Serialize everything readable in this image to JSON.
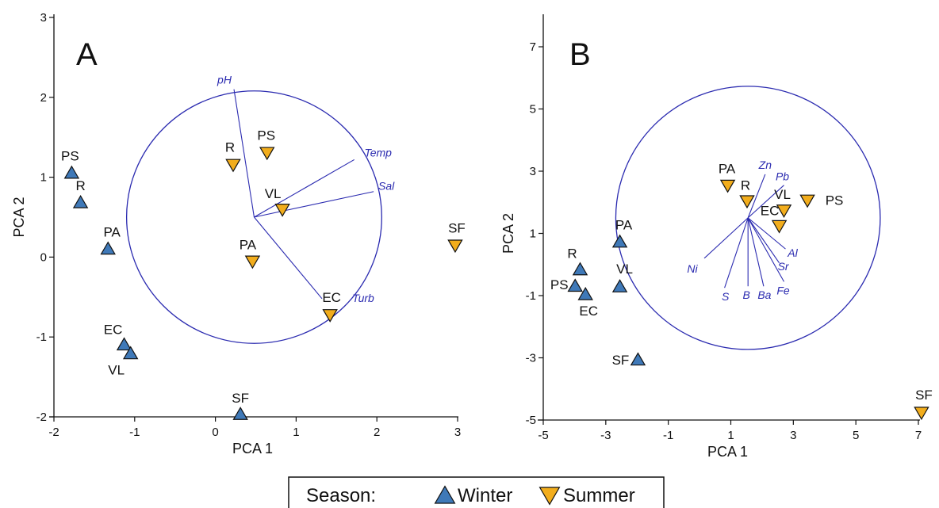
{
  "legend": {
    "title": "Season:",
    "winter_label": "Winter",
    "summer_label": "Summer",
    "winter_color": "#3f79b8",
    "summer_color": "#f2ad1c"
  },
  "chart_data": [
    {
      "type": "scatter",
      "panel_label": "A",
      "xlabel": "PCA 1",
      "ylabel": "PCA 2",
      "xlim": [
        -2,
        3
      ],
      "ylim": [
        -2,
        3
      ],
      "xticks": [
        -2,
        -1,
        0,
        1,
        2,
        3
      ],
      "yticks": [
        -2,
        -1,
        0,
        1,
        2,
        3
      ],
      "circle_color": "#2b2bb0",
      "circle": {
        "center": [
          0.48,
          0.5
        ],
        "radius": 1.58
      },
      "vector_origin": [
        0.48,
        0.5
      ],
      "vectors": [
        {
          "name": "pH",
          "end": [
            0.23,
            2.1
          ]
        },
        {
          "name": "Temp",
          "end": [
            1.72,
            1.22
          ]
        },
        {
          "name": "Sal",
          "end": [
            1.96,
            0.82
          ]
        },
        {
          "name": "Turb",
          "end": [
            1.32,
            -0.52
          ]
        }
      ],
      "series": [
        {
          "name": "Winter",
          "points": [
            {
              "label": "PS",
              "x": -1.78,
              "y": 1.05
            },
            {
              "label": "R",
              "x": -1.67,
              "y": 0.68
            },
            {
              "label": "PA",
              "x": -1.33,
              "y": 0.1
            },
            {
              "label": "EC",
              "x": -1.13,
              "y": -1.1
            },
            {
              "label": "VL",
              "x": -1.05,
              "y": -1.21
            },
            {
              "label": "SF",
              "x": 0.31,
              "y": -1.97
            }
          ]
        },
        {
          "name": "Summer",
          "points": [
            {
              "label": "R",
              "x": 0.22,
              "y": 1.16
            },
            {
              "label": "PS",
              "x": 0.64,
              "y": 1.31
            },
            {
              "label": "VL",
              "x": 0.83,
              "y": 0.6
            },
            {
              "label": "PA",
              "x": 0.46,
              "y": -0.05
            },
            {
              "label": "EC",
              "x": 1.42,
              "y": -0.72
            },
            {
              "label": "SF",
              "x": 2.97,
              "y": 0.15
            }
          ]
        }
      ]
    },
    {
      "type": "scatter",
      "panel_label": "B",
      "xlabel": "PCA 1",
      "ylabel": "PCA 2",
      "xlim": [
        -5,
        7
      ],
      "ylim": [
        -5,
        7
      ],
      "xticks": [
        -5,
        -3,
        -1,
        1,
        3,
        5,
        7
      ],
      "yticks": [
        -5,
        -3,
        -1,
        1,
        3,
        5,
        7
      ],
      "circle_color": "#2b2bb0",
      "circle": {
        "center": [
          1.55,
          1.5
        ],
        "radius": 4.23
      },
      "vector_origin": [
        1.55,
        1.5
      ],
      "vectors": [
        {
          "name": "Zn",
          "end": [
            2.1,
            2.9
          ]
        },
        {
          "name": "Pb",
          "end": [
            2.7,
            2.55
          ]
        },
        {
          "name": "Ni",
          "end": [
            0.15,
            0.2
          ]
        },
        {
          "name": "Al",
          "end": [
            2.75,
            0.5
          ]
        },
        {
          "name": "Sr",
          "end": [
            2.55,
            0.05
          ]
        },
        {
          "name": "Fe",
          "end": [
            2.7,
            -0.55
          ]
        },
        {
          "name": "Ba",
          "end": [
            2.05,
            -0.7
          ]
        },
        {
          "name": "B",
          "end": [
            1.55,
            -0.7
          ]
        },
        {
          "name": "S",
          "end": [
            0.8,
            -0.75
          ]
        }
      ],
      "series": [
        {
          "name": "Winter",
          "points": [
            {
              "label": "PA",
              "x": -2.55,
              "y": 0.72
            },
            {
              "label": "R",
              "x": -3.82,
              "y": -0.17
            },
            {
              "label": "VL",
              "x": -2.55,
              "y": -0.72
            },
            {
              "label": "PS",
              "x": -3.98,
              "y": -0.7
            },
            {
              "label": "EC",
              "x": -3.65,
              "y": -0.97
            },
            {
              "label": "SF",
              "x": -1.97,
              "y": -3.07
            }
          ]
        },
        {
          "name": "Summer",
          "points": [
            {
              "label": "PA",
              "x": 0.9,
              "y": 2.55
            },
            {
              "label": "R",
              "x": 1.52,
              "y": 2.05
            },
            {
              "label": "VL",
              "x": 2.7,
              "y": 1.75
            },
            {
              "label": "PS",
              "x": 3.45,
              "y": 2.07
            },
            {
              "label": "EC",
              "x": 2.55,
              "y": 1.25
            },
            {
              "label": "SF",
              "x": 7.1,
              "y": -4.75
            }
          ]
        }
      ]
    }
  ]
}
